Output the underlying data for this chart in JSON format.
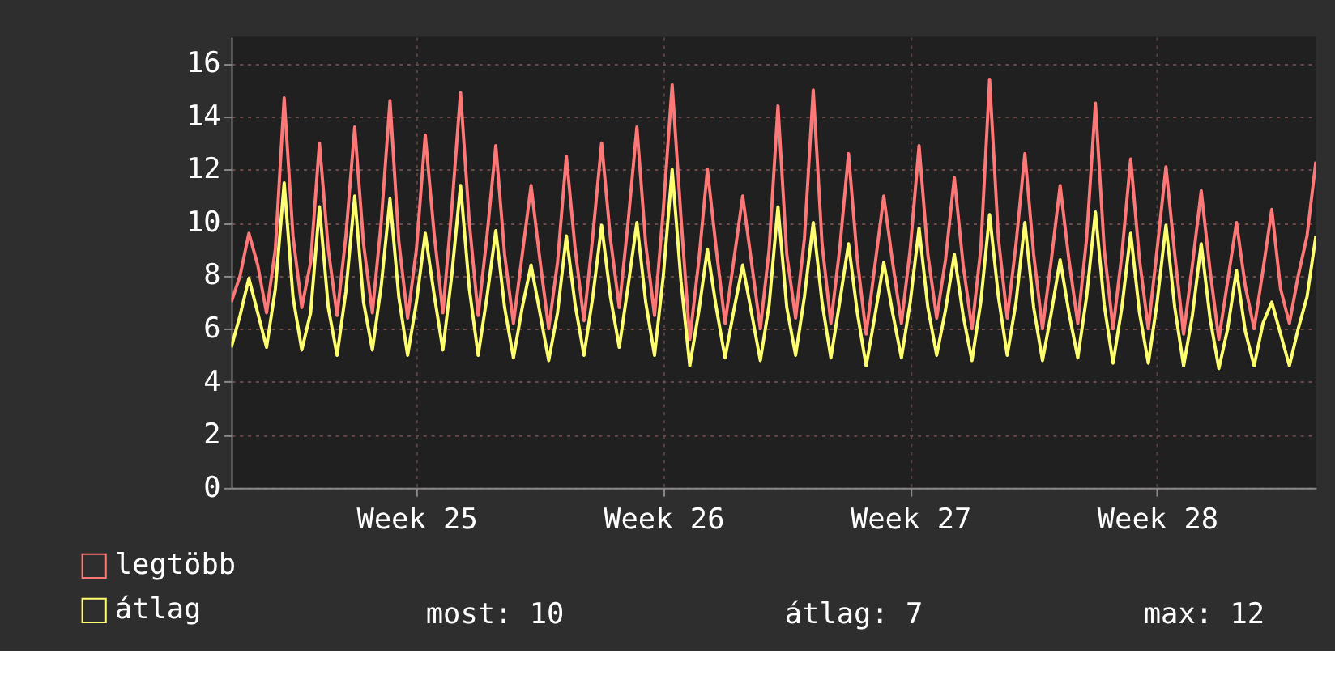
{
  "chart_data": {
    "type": "line",
    "categories": [
      null,
      null,
      null,
      null,
      null,
      null,
      null,
      null,
      null,
      null,
      null,
      null,
      null,
      null,
      null,
      null,
      null,
      null,
      null,
      null,
      null,
      "Week 25",
      null,
      null,
      null,
      null,
      null,
      null,
      null,
      null,
      null,
      null,
      null,
      null,
      null,
      null,
      null,
      null,
      null,
      null,
      null,
      null,
      null,
      null,
      null,
      null,
      null,
      null,
      null,
      "Week 26",
      null,
      null,
      null,
      null,
      null,
      null,
      null,
      null,
      null,
      null,
      null,
      null,
      null,
      null,
      null,
      null,
      null,
      null,
      null,
      null,
      null,
      null,
      null,
      null,
      null,
      null,
      null,
      "Week 27",
      null,
      null,
      null,
      null,
      null,
      null,
      null,
      null,
      null,
      null,
      null,
      null,
      null,
      null,
      null,
      null,
      null,
      null,
      null,
      null,
      null,
      null,
      null,
      null,
      null,
      null,
      null,
      "Week 28",
      null,
      null,
      null,
      null,
      null,
      null,
      null,
      null,
      null,
      null,
      null,
      null,
      null,
      null,
      null,
      null,
      null,
      null
    ],
    "ylim": [
      0,
      17
    ],
    "yticks": [
      0,
      2,
      4,
      6,
      8,
      10,
      12,
      14,
      16
    ],
    "grid": true,
    "legend": "bottom left",
    "series": [
      {
        "name": "legtöbb",
        "color": "#ff7878",
        "values": [
          7.0,
          8.0,
          9.6,
          8.4,
          6.6,
          9.0,
          14.7,
          9.5,
          6.8,
          8.5,
          13.0,
          9.0,
          6.5,
          9.5,
          13.6,
          9.2,
          6.6,
          10.0,
          14.6,
          9.3,
          6.4,
          9.0,
          13.3,
          9.6,
          6.6,
          10.5,
          14.9,
          10.0,
          6.5,
          9.5,
          12.9,
          8.8,
          6.2,
          8.8,
          11.4,
          8.6,
          6.0,
          8.5,
          12.5,
          9.0,
          6.3,
          9.5,
          13.0,
          9.4,
          6.8,
          10.0,
          13.6,
          9.2,
          6.5,
          10.5,
          15.2,
          10.2,
          5.6,
          8.5,
          12.0,
          9.0,
          6.2,
          8.6,
          11.0,
          8.5,
          6.0,
          9.0,
          14.4,
          8.8,
          6.4,
          9.4,
          15.0,
          9.2,
          6.2,
          9.0,
          12.6,
          8.6,
          5.8,
          8.4,
          11.0,
          8.5,
          6.2,
          9.0,
          12.9,
          8.8,
          6.4,
          8.6,
          11.7,
          8.4,
          6.0,
          9.0,
          15.4,
          9.4,
          6.4,
          9.2,
          12.6,
          8.8,
          6.0,
          8.6,
          11.4,
          8.6,
          6.2,
          9.4,
          14.5,
          9.0,
          6.0,
          8.8,
          12.4,
          8.6,
          6.0,
          9.0,
          12.1,
          8.8,
          5.8,
          8.4,
          11.2,
          8.2,
          5.6,
          7.8,
          10.0,
          7.6,
          6.0,
          8.2,
          10.5,
          7.5,
          6.2,
          8.0,
          9.5,
          12.3
        ]
      },
      {
        "name": "átlag",
        "color": "#ffff70",
        "values": [
          5.3,
          6.5,
          7.9,
          6.6,
          5.3,
          7.5,
          11.5,
          7.2,
          5.2,
          6.6,
          10.6,
          6.8,
          5.0,
          7.4,
          11.0,
          7.0,
          5.2,
          7.6,
          10.9,
          7.2,
          5.0,
          7.0,
          9.6,
          7.3,
          5.2,
          8.0,
          11.4,
          7.5,
          5.0,
          7.2,
          9.7,
          6.8,
          4.9,
          6.8,
          8.4,
          6.6,
          4.8,
          6.6,
          9.5,
          6.9,
          5.0,
          7.2,
          9.9,
          7.2,
          5.3,
          7.6,
          10.0,
          7.0,
          5.0,
          8.0,
          12.0,
          7.8,
          4.6,
          6.6,
          9.0,
          6.8,
          4.9,
          6.7,
          8.4,
          6.6,
          4.8,
          6.9,
          10.6,
          6.8,
          5.0,
          7.2,
          10.0,
          7.0,
          4.9,
          7.0,
          9.2,
          6.6,
          4.6,
          6.5,
          8.5,
          6.6,
          4.9,
          7.0,
          9.8,
          6.8,
          5.0,
          6.7,
          8.8,
          6.5,
          4.8,
          7.0,
          10.3,
          7.2,
          5.0,
          7.0,
          10.0,
          6.8,
          4.8,
          6.6,
          8.6,
          6.6,
          4.9,
          7.2,
          10.4,
          6.9,
          4.7,
          6.8,
          9.6,
          6.6,
          4.7,
          7.0,
          9.9,
          6.8,
          4.6,
          6.5,
          9.2,
          6.4,
          4.5,
          6.0,
          8.2,
          5.9,
          4.6,
          6.2,
          7.0,
          5.8,
          4.6,
          6.0,
          7.2,
          9.5
        ]
      }
    ],
    "annotations": [
      "most: 10",
      "átlag: 7",
      "max: 12"
    ]
  }
}
